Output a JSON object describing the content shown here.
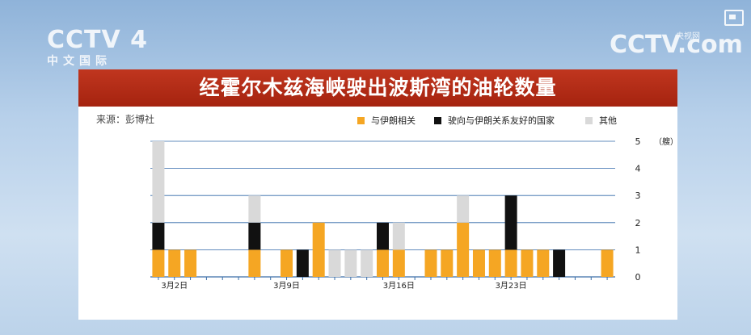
{
  "logos": {
    "channel": "CCTV 4",
    "channel_sub": "中文国际",
    "site": "CCTV.com",
    "site_cn": "央视网"
  },
  "chart_data": {
    "type": "bar",
    "stacked": true,
    "title": "经霍尔木兹海峡驶出波斯湾的油轮数量",
    "source": "来源：彭博社",
    "ylabel": "（艘）",
    "ylim": [
      0,
      5
    ],
    "yticks": [
      0,
      1,
      2,
      3,
      4,
      5
    ],
    "x_tick_labels": [
      {
        "label": "3月2日",
        "index": 1
      },
      {
        "label": "3月9日",
        "index": 8
      },
      {
        "label": "3月16日",
        "index": 15
      },
      {
        "label": "3月23日",
        "index": 22
      }
    ],
    "grid": true,
    "legend_position": "top-right",
    "colors": {
      "iran": "#f5a623",
      "friendly": "#111111",
      "other": "#d9d9d9"
    },
    "series": [
      {
        "name": "与伊朗相关",
        "key": "iran",
        "values": [
          1,
          1,
          1,
          0,
          0,
          0,
          1,
          0,
          1,
          0,
          2,
          0,
          0,
          0,
          1,
          1,
          0,
          1,
          1,
          2,
          1,
          1,
          1,
          1,
          1,
          0,
          0,
          0,
          1
        ]
      },
      {
        "name": "驶向与伊朗关系友好的国家",
        "key": "friendly",
        "values": [
          1,
          0,
          0,
          0,
          0,
          0,
          1,
          0,
          0,
          1,
          0,
          0,
          0,
          0,
          1,
          0,
          0,
          0,
          0,
          0,
          0,
          0,
          2,
          0,
          0,
          1,
          0,
          0,
          0
        ]
      },
      {
        "name": "其他",
        "key": "other",
        "values": [
          3,
          0,
          0,
          0,
          0,
          0,
          1,
          0,
          0,
          0,
          0,
          1,
          1,
          1,
          0,
          1,
          0,
          0,
          0,
          1,
          0,
          0,
          0,
          0,
          0,
          0,
          0,
          0,
          0
        ]
      }
    ]
  }
}
